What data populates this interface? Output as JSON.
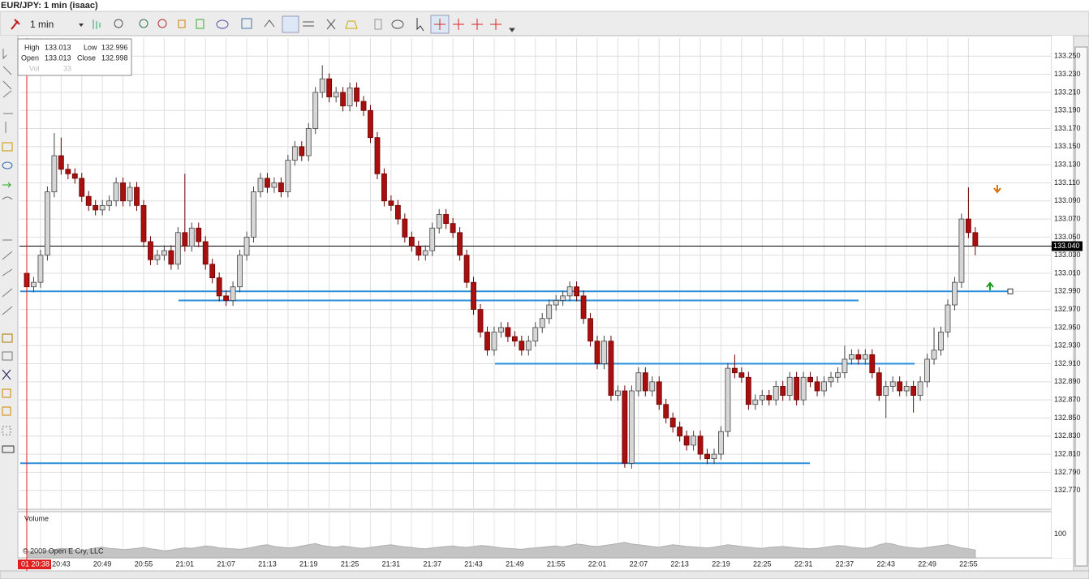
{
  "header": {
    "title": "EUR/JPY: 1 min (isaac)",
    "interval": "1 min"
  },
  "info_box": {
    "high_label": "High",
    "high": 133.013,
    "low_label": "Low",
    "low": 132.996,
    "open_label": "Open",
    "open": 133.013,
    "close_label": "Close",
    "close": 132.998,
    "vol_label": "Vol",
    "vol": 33
  },
  "cursor_label": "01 20:38",
  "copyright": "© 2009 Open E Cry, LLC",
  "chart_data": {
    "type": "candlestick",
    "categories": [
      null,
      null,
      null,
      null,
      null,
      "20:43",
      null,
      null,
      null,
      null,
      null,
      "20:49",
      null,
      null,
      null,
      null,
      null,
      "20:55",
      null,
      null,
      null,
      null,
      null,
      "21:01",
      null,
      null,
      null,
      null,
      null,
      "21:07",
      null,
      null,
      null,
      null,
      null,
      "21:13",
      null,
      null,
      null,
      null,
      null,
      "21:19",
      null,
      null,
      null,
      null,
      null,
      "21:25",
      null,
      null,
      null,
      null,
      null,
      "21:31",
      null,
      null,
      null,
      null,
      null,
      "21:37",
      null,
      null,
      null,
      null,
      null,
      "21:43",
      null,
      null,
      null,
      null,
      null,
      "21:49",
      null,
      null,
      null,
      null,
      null,
      "21:55",
      null,
      null,
      null,
      null,
      null,
      "22:01",
      null,
      null,
      null,
      null,
      null,
      "22:07",
      null,
      null,
      null,
      null,
      null,
      "22:13",
      null,
      null,
      null,
      null,
      null,
      "22:19",
      null,
      null,
      null,
      null,
      null,
      "22:25",
      null,
      null,
      null,
      null,
      null,
      "22:31",
      null,
      null,
      null,
      null,
      null,
      "22:37",
      null,
      null,
      null,
      null,
      null,
      "22:43",
      null,
      null,
      null,
      null,
      null,
      "22:49",
      null,
      null,
      null,
      null,
      null,
      "22:55",
      null
    ],
    "open": [
      133.01,
      132.995,
      133.0,
      133.03,
      133.1,
      133.14,
      133.125,
      133.12,
      133.115,
      133.095,
      133.085,
      133.08,
      133.085,
      133.09,
      133.11,
      133.09,
      133.105,
      133.085,
      133.045,
      133.025,
      133.03,
      133.035,
      133.02,
      133.055,
      133.04,
      133.06,
      133.045,
      133.02,
      133.005,
      132.985,
      132.98,
      132.995,
      133.03,
      133.05,
      133.1,
      133.115,
      133.105,
      133.11,
      133.1,
      133.135,
      133.15,
      133.14,
      133.17,
      133.21,
      133.225,
      133.205,
      133.21,
      133.195,
      133.215,
      133.2,
      133.19,
      133.16,
      133.12,
      133.09,
      133.085,
      133.07,
      133.05,
      133.04,
      133.03,
      133.035,
      133.06,
      133.075,
      133.065,
      133.055,
      133.03,
      133.0,
      132.97,
      132.945,
      132.925,
      132.945,
      132.95,
      132.94,
      132.935,
      132.925,
      132.935,
      132.95,
      132.96,
      132.975,
      132.98,
      132.985,
      132.995,
      132.985,
      132.96,
      132.935,
      132.91,
      132.935,
      132.875,
      132.88,
      132.8,
      132.88,
      132.9,
      132.88,
      132.89,
      132.865,
      132.85,
      132.84,
      132.83,
      132.82,
      132.83,
      132.81,
      132.805,
      132.81,
      132.835,
      132.905,
      132.9,
      132.895,
      132.865,
      132.87,
      132.875,
      132.87,
      132.885,
      132.875,
      132.895,
      132.87,
      132.895,
      132.89,
      132.88,
      132.89,
      132.895,
      132.9,
      132.915,
      132.92,
      132.915,
      132.92,
      132.9,
      132.875,
      132.885,
      132.89,
      132.88,
      132.885,
      132.875,
      132.89,
      132.915,
      132.925,
      132.945,
      132.975,
      133.0,
      133.07,
      133.055
    ],
    "high": [
      133.016,
      133.006,
      133.036,
      133.106,
      133.165,
      133.16,
      133.131,
      133.126,
      133.121,
      133.101,
      133.091,
      133.091,
      133.096,
      133.116,
      133.116,
      133.111,
      133.111,
      133.091,
      133.051,
      133.036,
      133.041,
      133.041,
      133.061,
      133.12,
      133.066,
      133.066,
      133.051,
      133.026,
      133.011,
      132.991,
      133.001,
      133.036,
      133.056,
      133.106,
      133.121,
      133.121,
      133.116,
      133.116,
      133.141,
      133.156,
      133.156,
      133.176,
      133.216,
      133.24,
      133.231,
      133.216,
      133.216,
      133.221,
      133.221,
      133.206,
      133.196,
      133.166,
      133.126,
      133.096,
      133.091,
      133.076,
      133.056,
      133.046,
      133.041,
      133.066,
      133.081,
      133.081,
      133.071,
      133.061,
      133.036,
      133.006,
      132.976,
      132.951,
      132.951,
      132.956,
      132.956,
      132.946,
      132.941,
      132.941,
      132.956,
      132.966,
      132.981,
      132.986,
      132.991,
      133.001,
      133.001,
      132.991,
      132.966,
      132.941,
      132.941,
      132.941,
      132.886,
      132.886,
      132.886,
      132.906,
      132.906,
      132.896,
      132.896,
      132.871,
      132.856,
      132.846,
      132.836,
      132.836,
      132.836,
      132.816,
      132.816,
      132.841,
      132.911,
      132.92,
      132.906,
      132.901,
      132.876,
      132.881,
      132.881,
      132.891,
      132.891,
      132.901,
      132.901,
      132.901,
      132.901,
      132.896,
      132.896,
      132.901,
      132.906,
      132.93,
      132.926,
      132.926,
      132.926,
      132.926,
      132.906,
      132.891,
      132.896,
      132.896,
      132.891,
      132.891,
      132.896,
      132.921,
      132.95,
      132.951,
      132.981,
      133.006,
      133.076,
      133.105,
      133.061
    ],
    "low": [
      132.989,
      132.989,
      132.994,
      133.024,
      133.094,
      133.119,
      133.114,
      133.109,
      133.089,
      133.079,
      133.074,
      133.074,
      133.079,
      133.084,
      133.084,
      133.084,
      133.079,
      133.039,
      133.019,
      133.019,
      133.024,
      133.014,
      133.014,
      133.034,
      133.034,
      133.039,
      133.014,
      132.999,
      132.979,
      132.974,
      132.974,
      132.989,
      133.024,
      133.044,
      133.094,
      133.099,
      133.099,
      133.094,
      133.094,
      133.129,
      133.134,
      133.134,
      133.164,
      133.204,
      133.199,
      133.199,
      133.189,
      133.189,
      133.194,
      133.184,
      133.154,
      133.114,
      133.084,
      133.079,
      133.064,
      133.044,
      133.034,
      133.024,
      133.024,
      133.029,
      133.054,
      133.059,
      133.049,
      133.024,
      132.994,
      132.964,
      132.939,
      132.919,
      132.919,
      132.939,
      132.934,
      132.929,
      132.919,
      132.919,
      132.929,
      132.944,
      132.954,
      132.969,
      132.974,
      132.979,
      132.979,
      132.954,
      132.929,
      132.904,
      132.904,
      132.869,
      132.869,
      132.795,
      132.794,
      132.874,
      132.874,
      132.874,
      132.859,
      132.844,
      132.834,
      132.824,
      132.814,
      132.814,
      132.804,
      132.799,
      132.799,
      132.804,
      132.829,
      132.894,
      132.889,
      132.859,
      132.859,
      132.864,
      132.864,
      132.864,
      132.869,
      132.869,
      132.864,
      132.864,
      132.884,
      132.874,
      132.874,
      132.884,
      132.889,
      132.894,
      132.909,
      132.909,
      132.909,
      132.894,
      132.869,
      132.85,
      132.879,
      132.874,
      132.874,
      132.856,
      132.869,
      132.884,
      132.909,
      132.919,
      132.939,
      132.969,
      132.994,
      133.049,
      133.03
    ],
    "close": [
      132.995,
      133.0,
      133.03,
      133.1,
      133.14,
      133.125,
      133.12,
      133.115,
      133.095,
      133.085,
      133.08,
      133.085,
      133.09,
      133.11,
      133.09,
      133.105,
      133.085,
      133.045,
      133.025,
      133.03,
      133.035,
      133.02,
      133.055,
      133.04,
      133.06,
      133.045,
      133.02,
      133.005,
      132.985,
      132.98,
      132.995,
      133.03,
      133.05,
      133.1,
      133.115,
      133.105,
      133.11,
      133.1,
      133.135,
      133.15,
      133.14,
      133.17,
      133.21,
      133.225,
      133.205,
      133.21,
      133.195,
      133.215,
      133.2,
      133.19,
      133.16,
      133.12,
      133.09,
      133.085,
      133.07,
      133.05,
      133.04,
      133.03,
      133.035,
      133.06,
      133.075,
      133.065,
      133.055,
      133.03,
      133.0,
      132.97,
      132.945,
      132.925,
      132.945,
      132.95,
      132.94,
      132.935,
      132.925,
      132.935,
      132.95,
      132.96,
      132.975,
      132.98,
      132.985,
      132.995,
      132.985,
      132.96,
      132.935,
      132.91,
      132.935,
      132.875,
      132.88,
      132.8,
      132.88,
      132.9,
      132.88,
      132.89,
      132.865,
      132.85,
      132.84,
      132.83,
      132.82,
      132.83,
      132.81,
      132.805,
      132.81,
      132.835,
      132.905,
      132.9,
      132.895,
      132.865,
      132.87,
      132.875,
      132.87,
      132.885,
      132.875,
      132.895,
      132.87,
      132.895,
      132.89,
      132.88,
      132.89,
      132.895,
      132.9,
      132.915,
      132.92,
      132.915,
      132.92,
      132.9,
      132.875,
      132.885,
      132.89,
      132.88,
      132.885,
      132.875,
      132.89,
      132.915,
      132.925,
      132.945,
      132.975,
      133.0,
      133.07,
      133.055,
      133.04
    ],
    "up_color": "#d6d6d6",
    "down_color": "#a81010",
    "ylim": [
      132.75,
      133.27
    ],
    "yticks": [
      {
        "value": 133.25,
        "label": "133.250"
      },
      {
        "value": 133.23,
        "label": "133.230"
      },
      {
        "value": 133.21,
        "label": "133.210"
      },
      {
        "value": 133.19,
        "label": "133.190"
      },
      {
        "value": 133.17,
        "label": "133.170"
      },
      {
        "value": 133.15,
        "label": "133.150"
      },
      {
        "value": 133.13,
        "label": "133.130"
      },
      {
        "value": 133.11,
        "label": "133.110"
      },
      {
        "value": 133.09,
        "label": "133.090"
      },
      {
        "value": 133.07,
        "label": "133.070"
      },
      {
        "value": 133.05,
        "label": "133.050"
      },
      {
        "value": 133.03,
        "label": "133.030"
      },
      {
        "value": 133.01,
        "label": "133.010"
      },
      {
        "value": 132.99,
        "label": "132.990"
      },
      {
        "value": 132.97,
        "label": "132.970"
      },
      {
        "value": 132.95,
        "label": "132.950"
      },
      {
        "value": 132.93,
        "label": "132.930"
      },
      {
        "value": 132.91,
        "label": "132.910"
      },
      {
        "value": 132.89,
        "label": "132.890"
      },
      {
        "value": 132.87,
        "label": "132.870"
      },
      {
        "value": 132.85,
        "label": "132.850"
      },
      {
        "value": 132.83,
        "label": "132.830"
      },
      {
        "value": 132.81,
        "label": "132.810"
      },
      {
        "value": 132.79,
        "label": "132.790"
      },
      {
        "value": 132.77,
        "label": "132.770"
      }
    ],
    "grid": true,
    "last_price": {
      "value": 133.04,
      "label": "133.040"
    },
    "support_lines": [
      132.99,
      132.98,
      132.91,
      132.8
    ],
    "support_color": "#2b8fdc",
    "volume": {
      "title": "Volume",
      "color": "#c4c4c4",
      "ylim": [
        0,
        190
      ],
      "yticks": [
        100
      ],
      "values": [
        28,
        25,
        22,
        30,
        35,
        40,
        38,
        33,
        30,
        36,
        42,
        45,
        40,
        38,
        35,
        37,
        40,
        44,
        38,
        35,
        30,
        33,
        38,
        42,
        40,
        45,
        50,
        48,
        42,
        40,
        38,
        36,
        40,
        45,
        52,
        55,
        48,
        45,
        42,
        44,
        50,
        55,
        60,
        52,
        48,
        45,
        50,
        46,
        42,
        40,
        44,
        48,
        52,
        55,
        50,
        46,
        44,
        40,
        38,
        42,
        45,
        48,
        50,
        46,
        44,
        48,
        52,
        50,
        46,
        42,
        40,
        38,
        36,
        40,
        42,
        45,
        48,
        50,
        46,
        52,
        58,
        55,
        50,
        48,
        52,
        56,
        60,
        65,
        58,
        55,
        52,
        48,
        45,
        50,
        55,
        52,
        48,
        46,
        44,
        42,
        45,
        50,
        55,
        52,
        48,
        45,
        42,
        40,
        44,
        46,
        48,
        45,
        42,
        40,
        38,
        40,
        44,
        48,
        52,
        50,
        45,
        42,
        40,
        44,
        55,
        62,
        58,
        50,
        45,
        42,
        40,
        44,
        48,
        52,
        56,
        50,
        42,
        38,
        33
      ]
    }
  }
}
